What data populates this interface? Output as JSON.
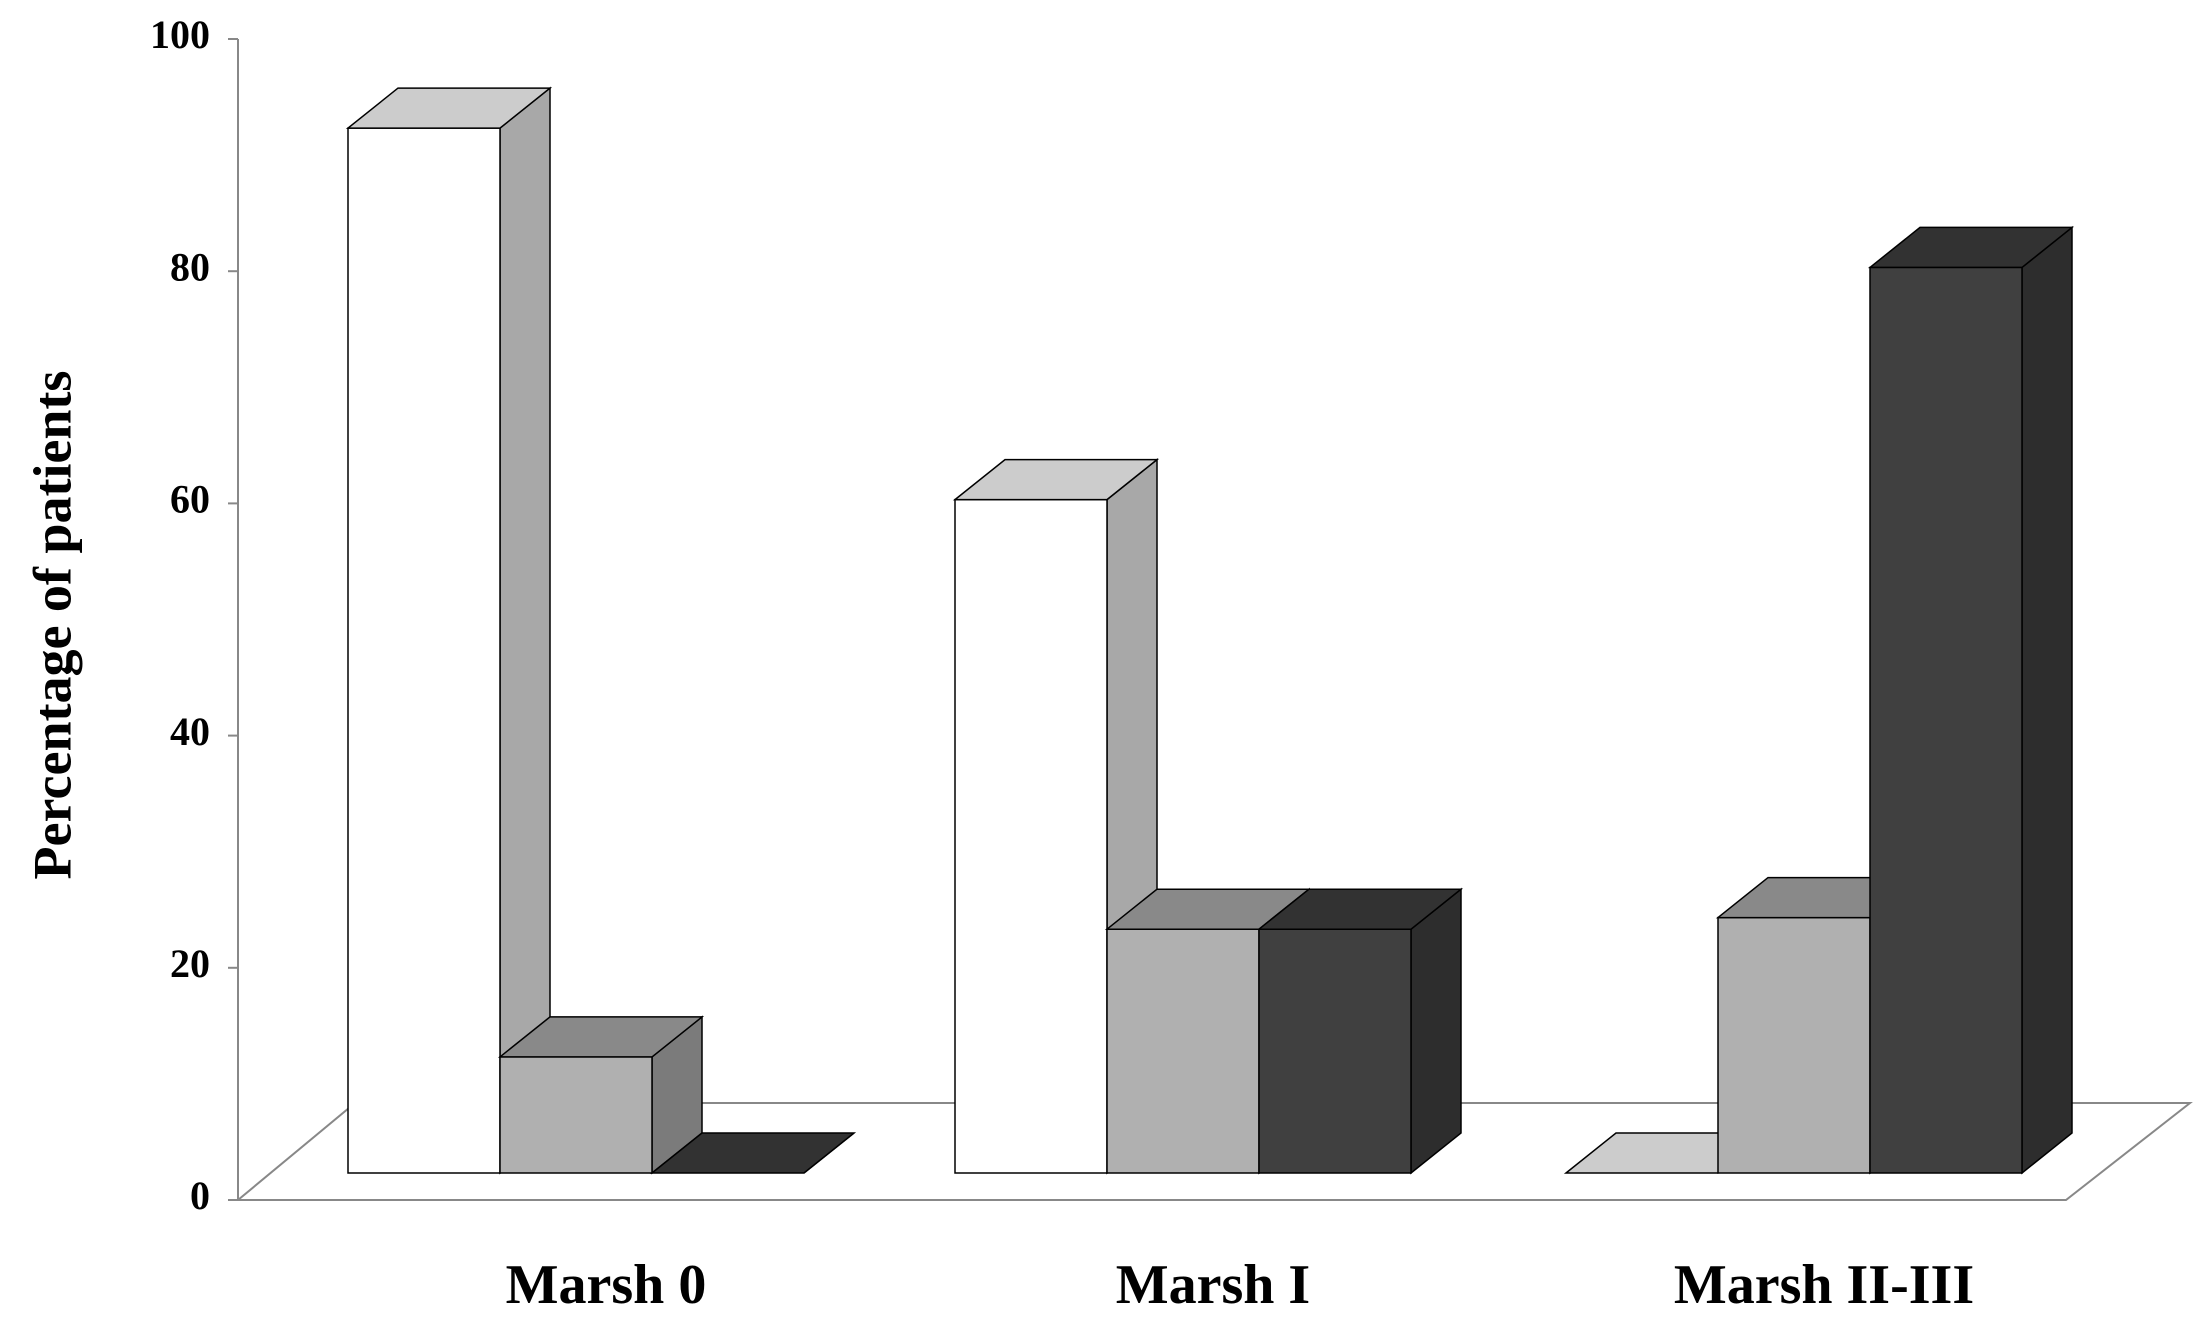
{
  "chart_data": {
    "type": "bar3d",
    "y_label": "Percentage of patients",
    "categories": [
      "Marsh 0",
      "Marsh I",
      "Marsh II-III"
    ],
    "series": [
      {
        "color": "#ffffff",
        "values": [
          90,
          58,
          0
        ]
      },
      {
        "color": "#b0b0b0",
        "values": [
          10,
          21,
          22
        ]
      },
      {
        "color": "#404040",
        "values": [
          0,
          21,
          78
        ]
      }
    ],
    "ylim": [
      0,
      100
    ],
    "yticks": [
      0,
      20,
      40,
      60,
      80,
      100
    ]
  }
}
